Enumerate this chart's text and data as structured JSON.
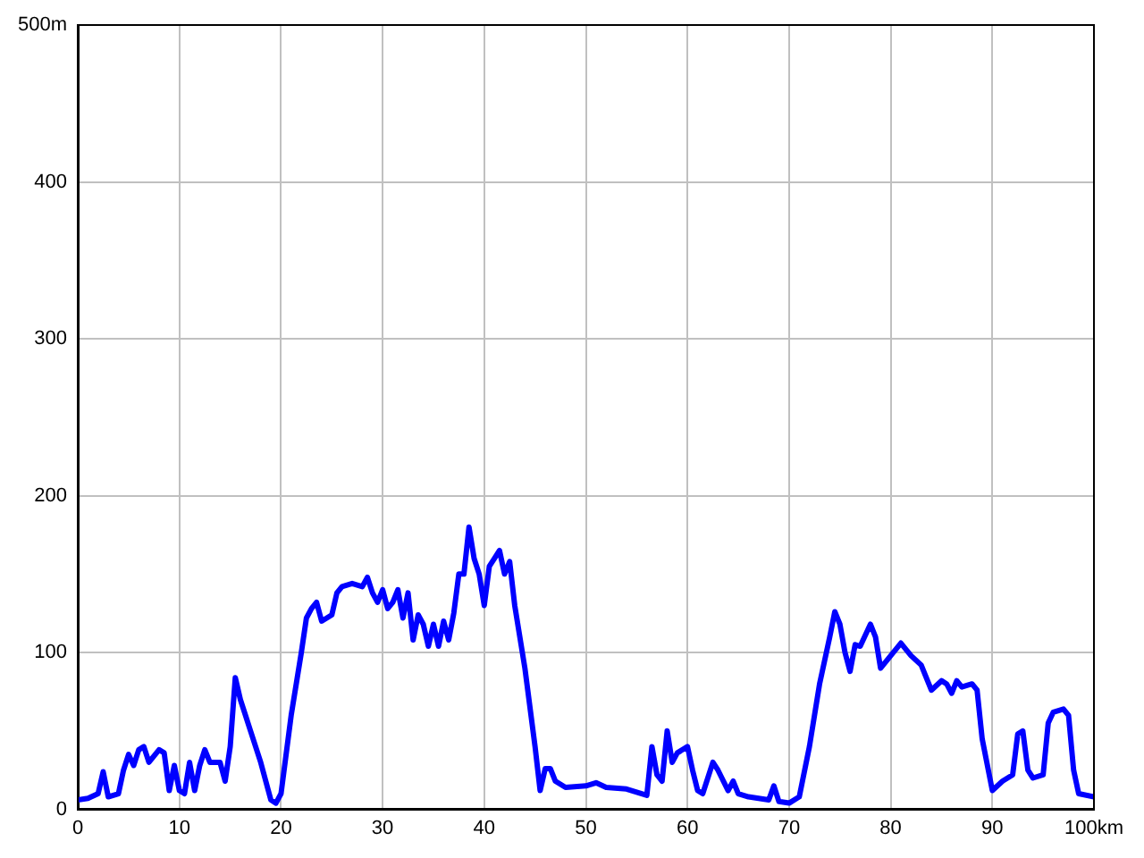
{
  "chart_data": {
    "type": "line",
    "x": [
      0,
      1,
      2,
      2.5,
      3,
      4,
      4.5,
      5,
      5.5,
      6,
      6.5,
      7,
      8,
      8.5,
      9,
      9.5,
      10,
      10.5,
      11,
      11.5,
      12,
      12.5,
      13,
      14,
      14.5,
      15,
      15.5,
      16,
      16.5,
      17,
      18,
      19,
      19.5,
      20,
      21,
      22,
      22.5,
      23,
      23.5,
      24,
      25,
      25.5,
      26,
      27,
      28,
      28.5,
      29,
      29.5,
      30,
      30.5,
      31,
      31.5,
      32,
      32.5,
      33,
      33.5,
      34,
      34.5,
      35,
      35.5,
      36,
      36.5,
      37,
      37.5,
      38,
      38.5,
      39,
      39.5,
      40,
      40.5,
      41,
      41.5,
      42,
      42.5,
      43,
      44,
      45,
      45.5,
      46,
      46.5,
      47,
      48,
      50,
      51,
      52,
      54,
      56,
      56.5,
      57,
      57.5,
      58,
      58.5,
      59,
      60,
      60.5,
      61,
      61.5,
      62,
      62.5,
      63,
      64,
      64.5,
      65,
      66,
      67,
      68,
      68.5,
      69,
      70,
      71,
      72,
      73,
      74,
      74.5,
      75,
      75.5,
      76,
      76.5,
      77,
      78,
      78.5,
      79,
      80,
      81,
      82,
      83,
      84,
      85,
      85.5,
      86,
      86.5,
      87,
      88,
      88.5,
      89,
      90,
      91,
      92,
      92.5,
      93,
      93.5,
      94,
      95,
      95.5,
      96,
      97,
      97.5,
      98,
      98.5,
      100
    ],
    "series": [
      {
        "color": "#0000ff",
        "values": [
          6,
          7,
          10,
          24,
          8,
          10,
          25,
          35,
          28,
          38,
          40,
          30,
          38,
          36,
          12,
          28,
          12,
          10,
          30,
          12,
          28,
          38,
          30,
          30,
          18,
          40,
          84,
          70,
          60,
          50,
          30,
          6,
          4,
          10,
          60,
          100,
          122,
          128,
          132,
          120,
          124,
          138,
          142,
          144,
          142,
          148,
          138,
          132,
          140,
          128,
          132,
          140,
          122,
          138,
          108,
          124,
          118,
          104,
          118,
          104,
          120,
          108,
          125,
          150,
          150,
          180,
          160,
          150,
          130,
          155,
          160,
          165,
          150,
          158,
          130,
          90,
          40,
          12,
          26,
          26,
          18,
          14,
          15,
          17,
          14,
          13,
          9,
          40,
          22,
          18,
          50,
          30,
          36,
          40,
          25,
          12,
          10,
          20,
          30,
          25,
          12,
          18,
          10,
          8,
          7,
          6,
          15,
          5,
          4,
          8,
          40,
          80,
          110,
          126,
          118,
          100,
          88,
          105,
          104,
          118,
          110,
          90,
          98,
          106,
          98,
          92,
          76,
          82,
          80,
          74,
          82,
          78,
          80,
          76,
          45,
          12,
          18,
          22,
          48,
          50,
          25,
          20,
          22,
          55,
          62,
          64,
          60,
          25,
          10,
          8
        ]
      }
    ],
    "xlim": [
      0,
      100
    ],
    "xticks": [
      0,
      10,
      20,
      30,
      40,
      50,
      60,
      70,
      80,
      90,
      {
        "value": 100,
        "label": "100km"
      }
    ],
    "ylim": [
      0,
      500
    ],
    "yticks": [
      0,
      100,
      200,
      300,
      400,
      {
        "value": 500,
        "label": "500m"
      }
    ],
    "grid": true,
    "legend": false,
    "marker": "none",
    "line_style": "solid"
  }
}
